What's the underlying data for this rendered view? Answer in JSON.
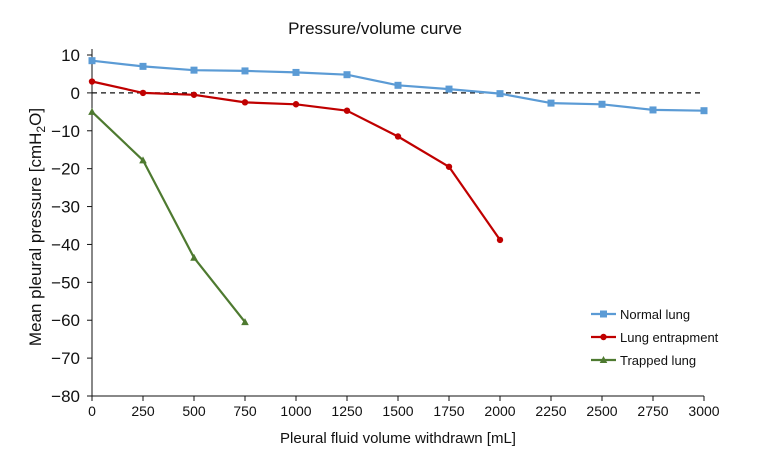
{
  "chart_data": {
    "type": "line",
    "title": "Pressure/volume curve",
    "xlabel": "Pleural fluid volume withdrawn [mL]",
    "ylabel_main": "Mean pleural pressure [cmH",
    "ylabel_sub": "2",
    "ylabel_tail": "O]",
    "xlim": [
      0,
      3000
    ],
    "ylim": [
      -80,
      10
    ],
    "xticks": [
      0,
      250,
      500,
      750,
      1000,
      1250,
      1500,
      1750,
      2000,
      2250,
      2500,
      2750,
      3000
    ],
    "yticks": [
      10,
      0,
      -10,
      -20,
      -30,
      -40,
      -50,
      -60,
      -70,
      -80
    ],
    "ytick_labels": [
      "10",
      "0",
      "−10",
      "−20",
      "−30",
      "−40",
      "−50",
      "−60",
      "−70",
      "−80"
    ],
    "reference_line": {
      "y": 0,
      "style": "dashed",
      "color": "#111111"
    },
    "legend_position": "bottom-right",
    "series": [
      {
        "name": "Normal lung",
        "color": "#5b9bd5",
        "marker": "square",
        "x": [
          0,
          250,
          500,
          750,
          1000,
          1250,
          1500,
          1750,
          2000,
          2250,
          2500,
          2750,
          3000
        ],
        "y": [
          8.5,
          7,
          6,
          5.8,
          5.4,
          4.8,
          2,
          1,
          -0.2,
          -2.7,
          -3,
          -4.5,
          -4.7
        ]
      },
      {
        "name": "Lung entrapment",
        "color": "#c00000",
        "marker": "circle",
        "x": [
          0,
          250,
          500,
          750,
          1000,
          1250,
          1500,
          1750,
          2000
        ],
        "y": [
          3,
          0,
          -0.5,
          -2.5,
          -3,
          -4.7,
          -11.5,
          -19.5,
          -38.8
        ]
      },
      {
        "name": "Trapped lung",
        "color": "#4e7a30",
        "marker": "triangle",
        "x": [
          0,
          250,
          500,
          750
        ],
        "y": [
          -5,
          -17.8,
          -43.5,
          -60.5
        ]
      }
    ]
  }
}
